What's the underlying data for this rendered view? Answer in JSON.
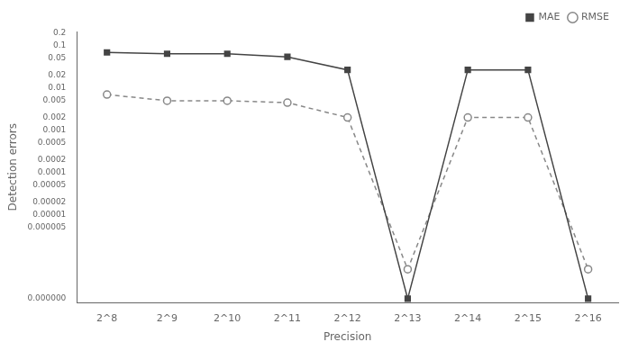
{
  "chart_data": {
    "type": "line",
    "categories": [
      "2^8",
      "2^9",
      "2^10",
      "2^11",
      "2^12",
      "2^13",
      "2^14",
      "2^15",
      "2^16"
    ],
    "series": [
      {
        "name": "MAE",
        "color": "#444444",
        "marker": "square",
        "line_style": "solid",
        "values": [
          0.07,
          0.065,
          0.065,
          0.055,
          0.027,
          1e-07,
          0.027,
          0.027,
          1e-07
        ]
      },
      {
        "name": "RMSE",
        "color": "#888888",
        "marker": "circle",
        "line_style": "dashed",
        "values": [
          0.007,
          0.005,
          0.005,
          0.0045,
          0.002,
          5e-07,
          0.002,
          0.002,
          5e-07
        ]
      }
    ],
    "xlabel": "Precision",
    "ylabel": "Detection errors",
    "log": "y",
    "ylim": [
      8e-08,
      0.22
    ],
    "yticks": [
      0.2,
      0.1,
      0.05,
      0.02,
      0.01,
      0.005,
      0.002,
      0.001,
      0.0005,
      0.0002,
      0.0001,
      5e-05,
      2e-05,
      1e-05,
      5e-06,
      {
        "value": 1e-07,
        "label": "0.000000"
      }
    ],
    "grid": false,
    "legend": "upper right"
  }
}
